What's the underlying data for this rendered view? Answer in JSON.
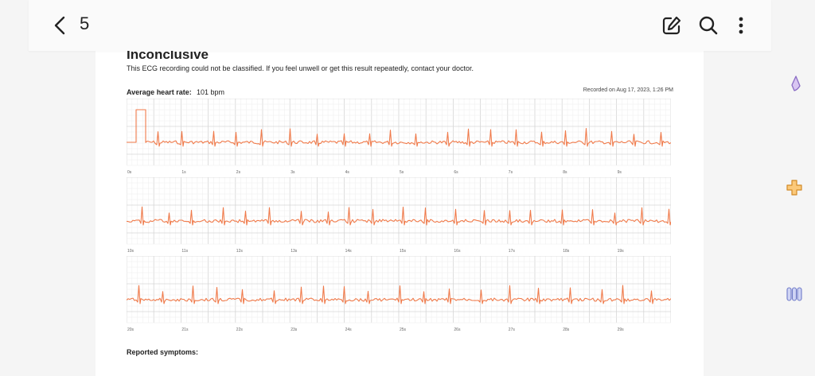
{
  "toolbar": {
    "page_number": "5",
    "icons": [
      "back-chevron-icon",
      "edit-icon",
      "search-icon",
      "more-vertical-icon"
    ]
  },
  "report": {
    "title": "Inconclusive",
    "description": "This ECG recording could not be classified. If you feel unwell or get this result repeatedly, contact your doctor.",
    "heart_rate_label": "Average heart rate:",
    "heart_rate_value": "101 bpm",
    "recorded": "Recorded on Aug 17, 2023, 1:26 PM",
    "symptoms_label": "Reported symptoms:"
  },
  "strips": [
    {
      "ticks": [
        "0s",
        "1s",
        "2s",
        "3s",
        "4s",
        "5s",
        "6s",
        "7s",
        "8s",
        "9s"
      ],
      "seed": 7
    },
    {
      "ticks": [
        "10s",
        "11s",
        "12s",
        "13s",
        "14s",
        "15s",
        "16s",
        "17s",
        "18s",
        "19s"
      ],
      "seed": 19
    },
    {
      "ticks": [
        "20s",
        "21s",
        "22s",
        "23s",
        "24s",
        "25s",
        "26s",
        "27s",
        "28s",
        "29s"
      ],
      "seed": 31
    }
  ],
  "colors": {
    "trace": "#f07a4a",
    "grid_minor": "#eeeeee",
    "grid_major": "#d6d6d6",
    "background": "#f5f5f5"
  },
  "side_tools": [
    "highlighter-icon",
    "puzzle-icon",
    "books-icon"
  ]
}
